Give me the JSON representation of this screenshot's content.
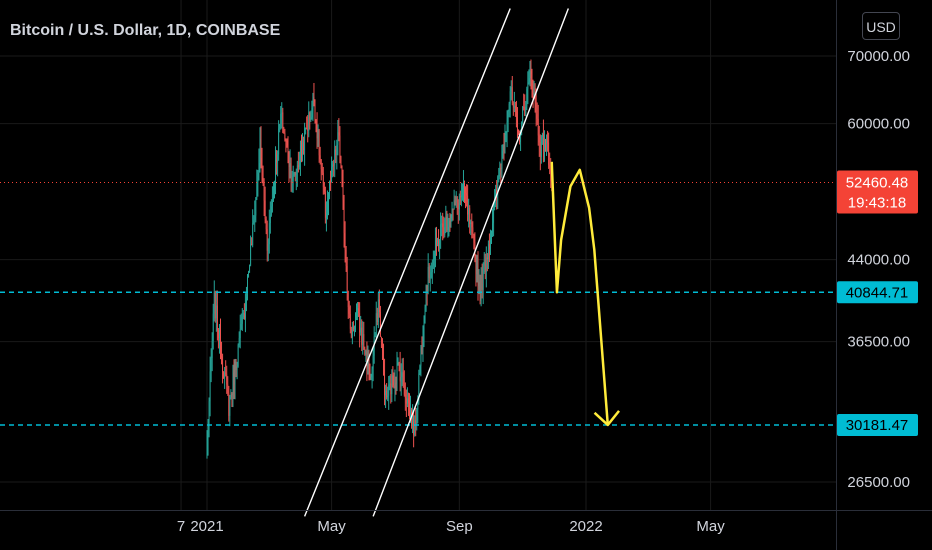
{
  "header": {
    "title": "Bitcoin / U.S. Dollar, 1D, COINBASE",
    "currency_button": "USD"
  },
  "colors": {
    "up": "#26a69a",
    "down": "#ef5350",
    "channel": "#ffffff",
    "level": "#00bcd4",
    "projection": "#ffeb3b",
    "current_price": "#f44336"
  },
  "chart_data": {
    "type": "candlestick",
    "title": "Bitcoin / U.S. Dollar, 1D, COINBASE",
    "price_scale": "log",
    "ylim": [
      24500,
      78000
    ],
    "y_ticks": [
      {
        "value": 70000,
        "label": "70000.00"
      },
      {
        "value": 60000,
        "label": "60000.00"
      },
      {
        "value": 44000,
        "label": "44000.00"
      },
      {
        "value": 36500,
        "label": "36500.00"
      },
      {
        "value": 26500,
        "label": "26500.00"
      }
    ],
    "x_ticks": [
      {
        "date": "2020-12-07",
        "label": "7"
      },
      {
        "date": "2021-01-01",
        "label": "2021"
      },
      {
        "date": "2021-05-01",
        "label": "May"
      },
      {
        "date": "2021-09-01",
        "label": "Sep"
      },
      {
        "date": "2022-01-01",
        "label": "2022"
      },
      {
        "date": "2022-05-01",
        "label": "May"
      }
    ],
    "price_path": [
      {
        "date": "2021-01-01",
        "close": 29000
      },
      {
        "date": "2021-01-08",
        "close": 40000
      },
      {
        "date": "2021-01-22",
        "close": 31500
      },
      {
        "date": "2021-02-05",
        "close": 38500
      },
      {
        "date": "2021-02-15",
        "close": 48000
      },
      {
        "date": "2021-02-21",
        "close": 57000
      },
      {
        "date": "2021-02-28",
        "close": 45500
      },
      {
        "date": "2021-03-13",
        "close": 61000
      },
      {
        "date": "2021-03-25",
        "close": 52500
      },
      {
        "date": "2021-04-14",
        "close": 63500
      },
      {
        "date": "2021-04-25",
        "close": 49000
      },
      {
        "date": "2021-05-08",
        "close": 58500
      },
      {
        "date": "2021-05-19",
        "close": 37000
      },
      {
        "date": "2021-05-25",
        "close": 39000
      },
      {
        "date": "2021-06-08",
        "close": 33500
      },
      {
        "date": "2021-06-15",
        "close": 40000
      },
      {
        "date": "2021-06-22",
        "close": 32000
      },
      {
        "date": "2021-07-05",
        "close": 34500
      },
      {
        "date": "2021-07-20",
        "close": 29800
      },
      {
        "date": "2021-07-31",
        "close": 41500
      },
      {
        "date": "2021-08-14",
        "close": 47000
      },
      {
        "date": "2021-09-06",
        "close": 51500
      },
      {
        "date": "2021-09-21",
        "close": 41000
      },
      {
        "date": "2021-10-03",
        "close": 48000
      },
      {
        "date": "2021-10-20",
        "close": 64500
      },
      {
        "date": "2021-10-28",
        "close": 58000
      },
      {
        "date": "2021-11-09",
        "close": 67500
      },
      {
        "date": "2021-11-18",
        "close": 57000
      },
      {
        "date": "2021-11-23",
        "close": 57800
      },
      {
        "date": "2021-11-27",
        "close": 55000
      },
      {
        "date": "2021-11-29",
        "close": 52460
      }
    ],
    "current_price": {
      "value": 52460.48,
      "label": "52460.48",
      "countdown": "19:43:18"
    },
    "horizontal_levels": [
      {
        "value": 40844.71,
        "label": "40844.71"
      },
      {
        "value": 30181.47,
        "label": "30181.47"
      }
    ],
    "ascending_channel": {
      "lower": [
        {
          "date": "2021-06-10",
          "price": 24500
        },
        {
          "date": "2021-12-15",
          "price": 78000
        }
      ],
      "upper": [
        {
          "date": "2021-04-05",
          "price": 24500
        },
        {
          "date": "2021-10-20",
          "price": 78000
        }
      ]
    },
    "projection_path": [
      {
        "date": "2021-11-29",
        "price": 55000
      },
      {
        "date": "2021-12-04",
        "price": 40844
      },
      {
        "date": "2021-12-08",
        "price": 46000
      },
      {
        "date": "2021-12-17",
        "price": 52000
      },
      {
        "date": "2021-12-26",
        "price": 54000
      },
      {
        "date": "2022-01-04",
        "price": 49500
      },
      {
        "date": "2022-01-09",
        "price": 45000
      },
      {
        "date": "2022-01-22",
        "price": 30181
      }
    ]
  }
}
